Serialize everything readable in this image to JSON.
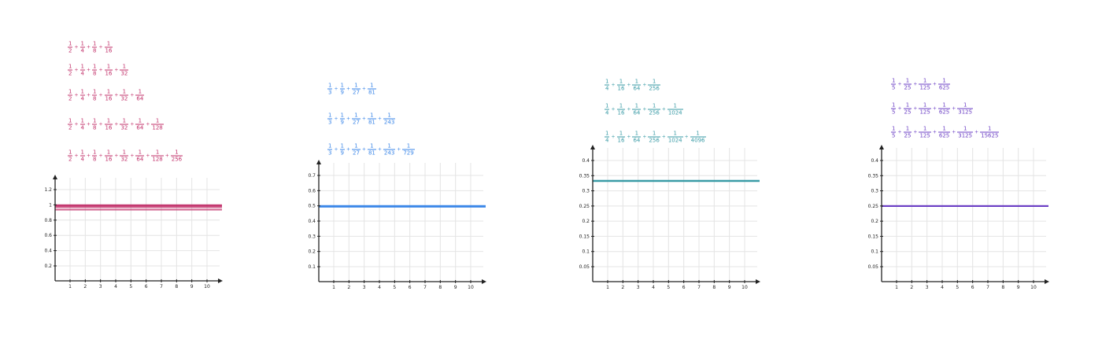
{
  "chart_data": [
    {
      "type": "line",
      "color": "#c2306a",
      "formulas": [
        [
          "2",
          "4",
          "8",
          "16"
        ],
        [
          "2",
          "4",
          "8",
          "16",
          "32"
        ],
        [
          "2",
          "4",
          "8",
          "16",
          "32",
          "64"
        ],
        [
          "2",
          "4",
          "8",
          "16",
          "32",
          "64",
          "128"
        ],
        [
          "2",
          "4",
          "8",
          "16",
          "32",
          "64",
          "128",
          "256"
        ]
      ],
      "formula_numerator": "1",
      "series_values": [
        0.9375,
        0.96875,
        0.984375,
        0.9921875,
        0.99609375
      ],
      "xlim": [
        0,
        11
      ],
      "ylim": [
        0,
        1.4
      ],
      "x_ticks": [
        "1",
        "2",
        "3",
        "4",
        "5",
        "6",
        "7",
        "8",
        "9",
        "10"
      ],
      "y_ticks": [
        "0.2",
        "0.4",
        "0.6",
        "0.8",
        "1",
        "1.2"
      ],
      "grid": true
    },
    {
      "type": "line",
      "color": "#3a86e8",
      "formulas": [
        [
          "3",
          "9",
          "27",
          "81"
        ],
        [
          "3",
          "9",
          "27",
          "81",
          "243"
        ],
        [
          "3",
          "9",
          "27",
          "81",
          "243",
          "729"
        ]
      ],
      "formula_numerator": "1",
      "series_values": [
        0.4938,
        0.4979,
        0.4993
      ],
      "xlim": [
        0,
        11
      ],
      "ylim": [
        0,
        0.8
      ],
      "x_ticks": [
        "1",
        "2",
        "3",
        "4",
        "5",
        "6",
        "7",
        "8",
        "9",
        "10"
      ],
      "y_ticks": [
        "0.1",
        "0.2",
        "0.3",
        "0.4",
        "0.5",
        "0.6",
        "0.7"
      ],
      "grid": true
    },
    {
      "type": "line",
      "color": "#3a9ba6",
      "formulas": [
        [
          "4",
          "16",
          "64",
          "256"
        ],
        [
          "4",
          "16",
          "64",
          "256",
          "1024"
        ],
        [
          "4",
          "16",
          "64",
          "256",
          "1024",
          "4096"
        ]
      ],
      "formula_numerator": "1",
      "series_values": [
        0.33203,
        0.33301,
        0.33325
      ],
      "xlim": [
        0,
        11
      ],
      "ylim": [
        0,
        0.45
      ],
      "x_ticks": [
        "1",
        "2",
        "3",
        "4",
        "5",
        "6",
        "7",
        "8",
        "9",
        "10"
      ],
      "y_ticks": [
        "0.05",
        "0.1",
        "0.15",
        "0.2",
        "0.25",
        "0.3",
        "0.35",
        "0.4"
      ],
      "grid": true
    },
    {
      "type": "line",
      "color": "#6b3fc4",
      "formulas": [
        [
          "5",
          "25",
          "125",
          "625"
        ],
        [
          "5",
          "25",
          "125",
          "625",
          "3125"
        ],
        [
          "5",
          "25",
          "125",
          "625",
          "3125",
          "15625"
        ]
      ],
      "formula_numerator": "1",
      "series_values": [
        0.2496,
        0.24992,
        0.249984
      ],
      "xlim": [
        0,
        11
      ],
      "ylim": [
        0,
        0.45
      ],
      "x_ticks": [
        "1",
        "2",
        "3",
        "4",
        "5",
        "6",
        "7",
        "8",
        "9",
        "10"
      ],
      "y_ticks": [
        "0.05",
        "0.1",
        "0.15",
        "0.2",
        "0.25",
        "0.3",
        "0.35",
        "0.4"
      ],
      "grid": true
    }
  ]
}
